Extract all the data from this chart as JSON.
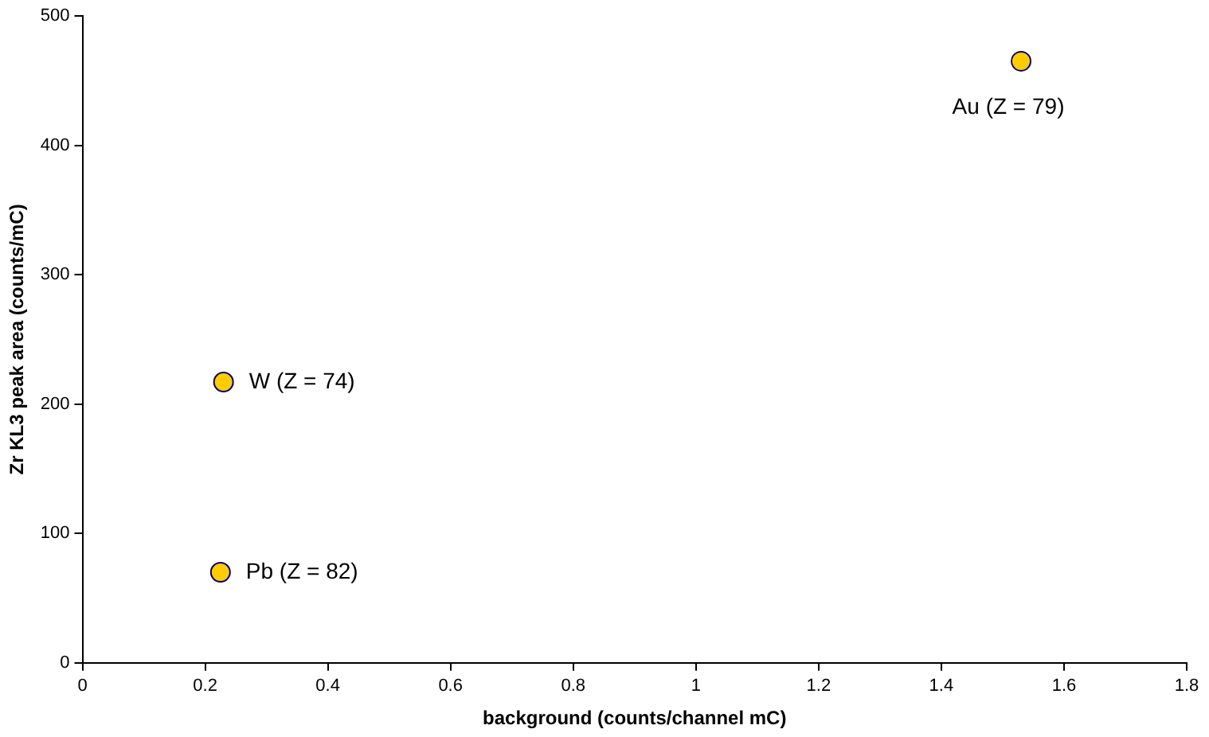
{
  "chart_data": {
    "type": "scatter",
    "xlabel": "background (counts/channel mC)",
    "ylabel": "Zr KL3 peak area (counts/mC)",
    "series": [
      {
        "color": "#ffcc00",
        "x": [
          0.23,
          0.225,
          1.53
        ],
        "values": [
          217,
          70,
          465
        ]
      }
    ],
    "xlim": [
      0,
      1.8
    ],
    "xticks": [
      0,
      0.2,
      0.4,
      0.6,
      0.8,
      1,
      1.2,
      1.4,
      1.6,
      1.8
    ],
    "ylim": [
      0,
      500
    ],
    "yticks": [
      0,
      100,
      200,
      300,
      400,
      500
    ],
    "grid": false,
    "legend": false,
    "marker": "circle",
    "annotations": [
      {
        "text": "W (Z = 74)",
        "x": 0.23,
        "y": 217
      },
      {
        "text": "Pb (Z = 82)",
        "x": 0.225,
        "y": 70
      },
      {
        "text": "Au (Z = 79)",
        "x": 1.53,
        "y": 465
      }
    ]
  }
}
